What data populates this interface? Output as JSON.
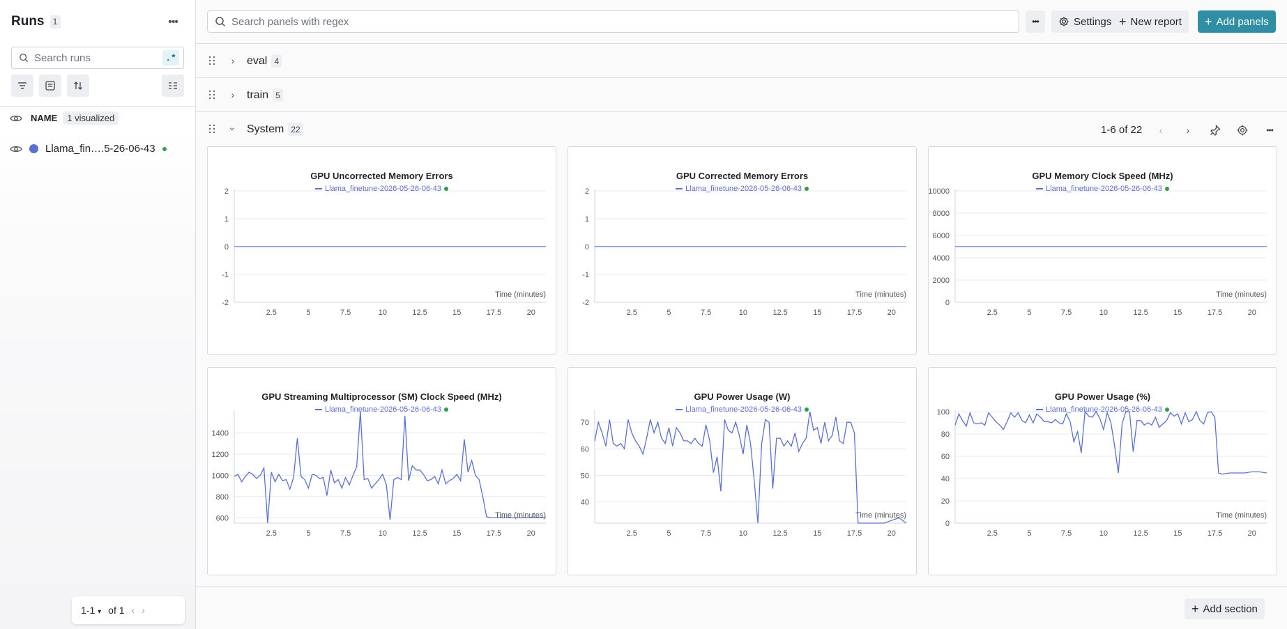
{
  "sidebar": {
    "title": "Runs",
    "run_count": "1",
    "more_label": "•••",
    "search_placeholder": "Search runs",
    "regex_label": ".*",
    "name_header": "NAME",
    "visualized_label": "1 visualized",
    "runs": [
      {
        "name": "Llama_fin….5-26-06-43",
        "color": "#5a6fd6",
        "status_color": "#2f9e44"
      }
    ],
    "pager": {
      "range": "1-1",
      "of": "of 1"
    }
  },
  "toolbar": {
    "search_placeholder": "Search panels with regex",
    "more_label": "•••",
    "settings_label": "Settings",
    "new_report_label": "New report",
    "add_panels_label": "Add panels",
    "accent": "#2e8ea3"
  },
  "sections": [
    {
      "name": "eval",
      "count": "4",
      "expanded": false
    },
    {
      "name": "train",
      "count": "5",
      "expanded": false
    },
    {
      "name": "System",
      "count": "22",
      "expanded": true,
      "page_range": "1-6 of 22"
    }
  ],
  "add_section_label": "Add section",
  "chart_data": [
    {
      "type": "line",
      "title": "GPU Uncorrected Memory Errors",
      "series": [
        {
          "name": "Llama_finetune-2026-05-26-06-43",
          "x": [
            0,
            21
          ],
          "values": [
            0,
            0
          ]
        }
      ],
      "xlabel": "Time (minutes)",
      "xticks": [
        2.5,
        5,
        7.5,
        10,
        12.5,
        15,
        17.5,
        20
      ],
      "yticks": [
        -2,
        -1,
        0,
        1,
        2
      ],
      "xlim": [
        0,
        21
      ],
      "ylim": [
        -2,
        2
      ]
    },
    {
      "type": "line",
      "title": "GPU Corrected Memory Errors",
      "series": [
        {
          "name": "Llama_finetune-2026-05-26-06-43",
          "x": [
            0,
            21
          ],
          "values": [
            0,
            0
          ]
        }
      ],
      "xlabel": "Time (minutes)",
      "xticks": [
        2.5,
        5,
        7.5,
        10,
        12.5,
        15,
        17.5,
        20
      ],
      "yticks": [
        -2,
        -1,
        0,
        1,
        2
      ],
      "xlim": [
        0,
        21
      ],
      "ylim": [
        -2,
        2
      ]
    },
    {
      "type": "line",
      "title": "GPU Memory Clock Speed (MHz)",
      "series": [
        {
          "name": "Llama_finetune-2026-05-26-06-43",
          "x": [
            0,
            21
          ],
          "values": [
            5000,
            5000
          ]
        }
      ],
      "xlabel": "Time (minutes)",
      "xticks": [
        2.5,
        5,
        7.5,
        10,
        12.5,
        15,
        17.5,
        20
      ],
      "yticks": [
        0,
        2000,
        4000,
        6000,
        8000,
        10000
      ],
      "xlim": [
        0,
        21
      ],
      "ylim": [
        0,
        10000
      ]
    },
    {
      "type": "line",
      "title": "GPU Streaming Multiprocessor (SM) Clock Speed (MHz)",
      "series": [
        {
          "name": "Llama_finetune-2026-05-26-06-43",
          "x": [
            0,
            0.25,
            0.5,
            0.75,
            1,
            1.25,
            1.5,
            1.75,
            2,
            2.25,
            2.5,
            2.75,
            3,
            3.25,
            3.5,
            3.75,
            4,
            4.25,
            4.5,
            4.75,
            5,
            5.25,
            5.5,
            5.75,
            6,
            6.25,
            6.5,
            6.75,
            7,
            7.25,
            7.5,
            7.75,
            8,
            8.25,
            8.5,
            8.75,
            9,
            9.25,
            9.5,
            9.75,
            10,
            10.25,
            10.5,
            10.75,
            11,
            11.25,
            11.5,
            11.75,
            12,
            12.25,
            12.5,
            12.75,
            13,
            13.25,
            13.5,
            13.75,
            14,
            14.25,
            14.5,
            14.75,
            15,
            15.25,
            15.5,
            15.75,
            16,
            16.25,
            16.5,
            16.75,
            17,
            17.25,
            17.5,
            17.75,
            18,
            18.5,
            19,
            19.5,
            20,
            20.5,
            21
          ],
          "values": [
            990,
            1010,
            940,
            990,
            1030,
            1010,
            970,
            1000,
            1070,
            550,
            1030,
            940,
            1010,
            950,
            960,
            870,
            980,
            1350,
            990,
            960,
            880,
            1010,
            1000,
            970,
            980,
            810,
            1050,
            930,
            960,
            880,
            980,
            910,
            1000,
            1080,
            1600,
            960,
            970,
            880,
            920,
            960,
            1010,
            910,
            580,
            960,
            980,
            960,
            1560,
            950,
            1090,
            1050,
            1050,
            1010,
            950,
            960,
            990,
            920,
            1050,
            920,
            950,
            970,
            1010,
            950,
            1340,
            1030,
            1140,
            1000,
            960,
            800,
            610,
            600,
            600,
            600,
            600,
            600,
            600,
            600,
            600,
            600,
            600
          ]
        }
      ],
      "xlabel": "Time (minutes)",
      "xticks": [
        2.5,
        5,
        7.5,
        10,
        12.5,
        15,
        17.5,
        20
      ],
      "yticks": [
        600,
        800,
        1000,
        1200,
        1400
      ],
      "xlim": [
        0,
        21
      ],
      "ylim": [
        550,
        1600
      ]
    },
    {
      "type": "line",
      "title": "GPU Power Usage (W)",
      "series": [
        {
          "name": "Llama_finetune-2026-05-26-06-43",
          "x": [
            0,
            0.25,
            0.5,
            0.75,
            1,
            1.25,
            1.5,
            1.75,
            2,
            2.25,
            2.5,
            2.75,
            3,
            3.25,
            3.5,
            3.75,
            4,
            4.25,
            4.5,
            4.75,
            5,
            5.25,
            5.5,
            5.75,
            6,
            6.25,
            6.5,
            6.75,
            7,
            7.25,
            7.5,
            7.75,
            8,
            8.25,
            8.5,
            8.75,
            9,
            9.25,
            9.5,
            9.75,
            10,
            10.25,
            10.5,
            10.75,
            11,
            11.25,
            11.5,
            11.75,
            12,
            12.25,
            12.5,
            12.75,
            13,
            13.25,
            13.5,
            13.75,
            14,
            14.25,
            14.5,
            14.75,
            15,
            15.25,
            15.5,
            15.75,
            16,
            16.25,
            16.5,
            16.75,
            17,
            17.25,
            17.5,
            17.75,
            18,
            18.5,
            19,
            19.5,
            20,
            20.5,
            21
          ],
          "values": [
            63,
            70,
            66,
            61,
            71,
            62,
            61,
            62,
            60,
            71,
            66,
            63,
            61,
            58,
            64,
            71,
            66,
            70,
            64,
            62,
            68,
            61,
            68,
            66,
            63,
            63,
            62,
            64,
            62,
            61,
            69,
            63,
            51,
            57,
            44,
            71,
            67,
            66,
            70,
            65,
            58,
            69,
            62,
            48,
            32,
            62,
            71,
            70,
            45,
            64,
            64,
            61,
            63,
            61,
            66,
            59,
            62,
            64,
            74,
            67,
            68,
            62,
            70,
            63,
            65,
            72,
            63,
            62,
            70,
            70,
            66,
            32,
            32,
            32,
            32,
            32,
            33,
            34,
            32
          ]
        }
      ],
      "xlabel": "Time (minutes)",
      "xticks": [
        2.5,
        5,
        7.5,
        10,
        12.5,
        15,
        17.5,
        20
      ],
      "yticks": [
        40,
        50,
        60,
        70
      ],
      "xlim": [
        0,
        21
      ],
      "ylim": [
        32,
        74
      ]
    },
    {
      "type": "line",
      "title": "GPU Power Usage (%)",
      "series": [
        {
          "name": "Llama_finetune-2026-05-26-06-43",
          "x": [
            0,
            0.25,
            0.5,
            0.75,
            1,
            1.25,
            1.5,
            1.75,
            2,
            2.25,
            2.5,
            2.75,
            3,
            3.25,
            3.5,
            3.75,
            4,
            4.25,
            4.5,
            4.75,
            5,
            5.25,
            5.5,
            5.75,
            6,
            6.25,
            6.5,
            6.75,
            7,
            7.25,
            7.5,
            7.75,
            8,
            8.25,
            8.5,
            8.75,
            9,
            9.25,
            9.5,
            9.75,
            10,
            10.25,
            10.5,
            10.75,
            11,
            11.25,
            11.5,
            11.75,
            12,
            12.25,
            12.5,
            12.75,
            13,
            13.25,
            13.5,
            13.75,
            14,
            14.25,
            14.5,
            14.75,
            15,
            15.25,
            15.5,
            15.75,
            16,
            16.25,
            16.5,
            16.75,
            17,
            17.25,
            17.5,
            17.75,
            18,
            18.5,
            19,
            19.5,
            20,
            20.5,
            21
          ],
          "values": [
            88,
            98,
            92,
            87,
            99,
            90,
            89,
            90,
            88,
            99,
            95,
            91,
            88,
            84,
            91,
            99,
            95,
            99,
            92,
            90,
            97,
            90,
            98,
            95,
            91,
            91,
            90,
            93,
            90,
            89,
            98,
            91,
            73,
            82,
            63,
            100,
            96,
            95,
            100,
            94,
            84,
            99,
            90,
            69,
            45,
            89,
            100,
            100,
            64,
            92,
            92,
            88,
            90,
            88,
            95,
            86,
            89,
            92,
            99,
            96,
            98,
            89,
            99,
            91,
            93,
            100,
            92,
            89,
            99,
            100,
            95,
            45,
            44,
            45,
            45,
            45,
            46,
            46,
            45
          ]
        }
      ],
      "xlabel": "Time (minutes)",
      "xticks": [
        2.5,
        5,
        7.5,
        10,
        12.5,
        15,
        17.5,
        20
      ],
      "yticks": [
        0,
        20,
        40,
        60,
        80,
        100
      ],
      "xlim": [
        0,
        21
      ],
      "ylim": [
        0,
        100
      ]
    }
  ]
}
